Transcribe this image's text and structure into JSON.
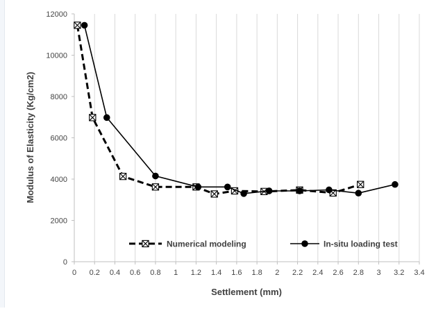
{
  "chart_data": {
    "type": "line",
    "xlabel": "Settlement (mm)",
    "ylabel": "Modulus of Elasticity (Kg/cm2)",
    "xlim": [
      0,
      3.4
    ],
    "ylim": [
      0,
      12000
    ],
    "x_ticks": [
      0,
      0.2,
      0.4,
      0.6,
      0.8,
      1,
      1.2,
      1.4,
      1.6,
      1.8,
      2,
      2.2,
      2.4,
      2.6,
      2.8,
      3,
      3.2,
      3.4
    ],
    "y_ticks": [
      0,
      2000,
      4000,
      6000,
      8000,
      10000,
      12000
    ],
    "grid": "vertical",
    "legend_position": "bottom",
    "series": [
      {
        "name": "Numerical modeling",
        "line_style": "dashed",
        "marker": "boxed-x",
        "color": "#000000",
        "x": [
          0.03,
          0.18,
          0.48,
          0.8,
          1.2,
          1.38,
          1.58,
          1.87,
          2.22,
          2.55,
          2.82
        ],
        "y": [
          11450,
          6980,
          4130,
          3620,
          3620,
          3280,
          3430,
          3400,
          3470,
          3330,
          3740
        ]
      },
      {
        "name": "In-situ loading test",
        "line_style": "solid",
        "marker": "circle",
        "color": "#000000",
        "x": [
          0.1,
          0.32,
          0.8,
          1.22,
          1.51,
          1.67,
          1.92,
          2.22,
          2.51,
          2.8,
          3.16
        ],
        "y": [
          11450,
          6980,
          4150,
          3620,
          3620,
          3300,
          3430,
          3430,
          3480,
          3320,
          3740
        ]
      }
    ]
  }
}
